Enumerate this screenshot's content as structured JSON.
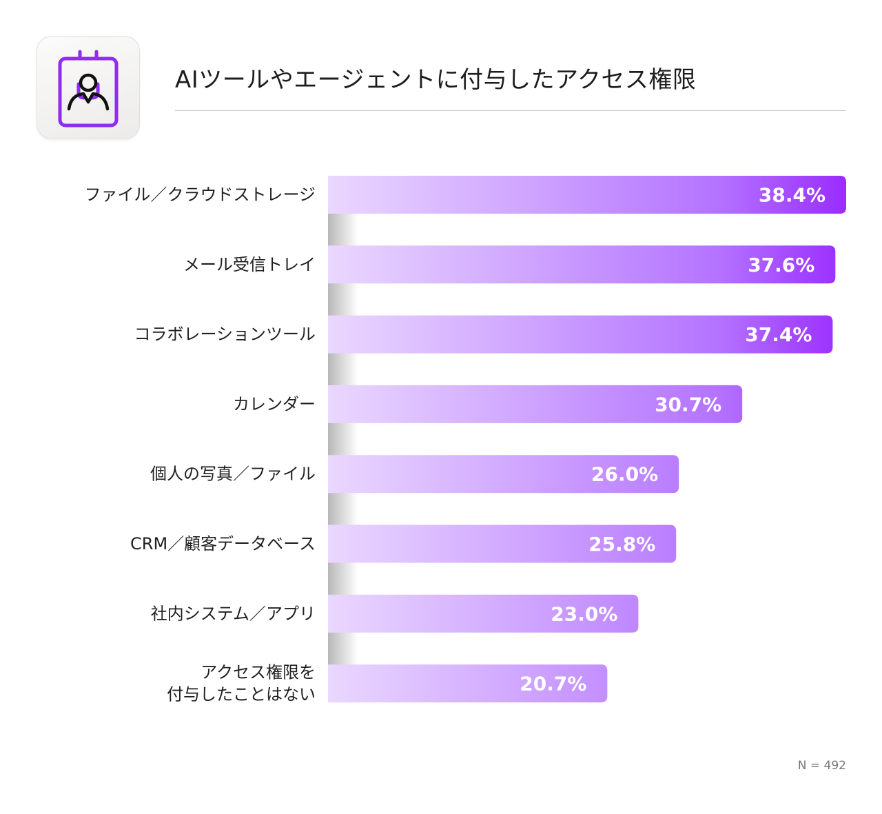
{
  "title": "AIツールやエージェントに付与したアクセス権限",
  "note": "N = 492",
  "icon": "id-badge-icon",
  "colors": {
    "accent": "#9a2cff",
    "bar_start": "#ead8ff",
    "bar_end": "#b473ff",
    "icon_stroke": "#8f2cf0"
  },
  "chart_data": {
    "type": "bar",
    "orientation": "horizontal",
    "title": "AIツールやエージェントに付与したアクセス権限",
    "categories": [
      "ファイル／クラウドストレージ",
      "メール受信トレイ",
      "コラボレーションツール",
      "カレンダー",
      "個人の写真／ファイル",
      "CRM／顧客データベース",
      "社内システム／アプリ",
      "アクセス権限を\n付与したことはない"
    ],
    "values": [
      38.4,
      37.6,
      37.4,
      30.7,
      26.0,
      25.8,
      23.0,
      20.7
    ],
    "value_labels": [
      "38.4%",
      "37.6%",
      "37.4%",
      "30.7%",
      "26.0%",
      "25.8%",
      "23.0%",
      "20.7%"
    ],
    "unit": "%",
    "xlim": [
      0,
      38.4
    ],
    "grid": false,
    "legend": "none"
  }
}
